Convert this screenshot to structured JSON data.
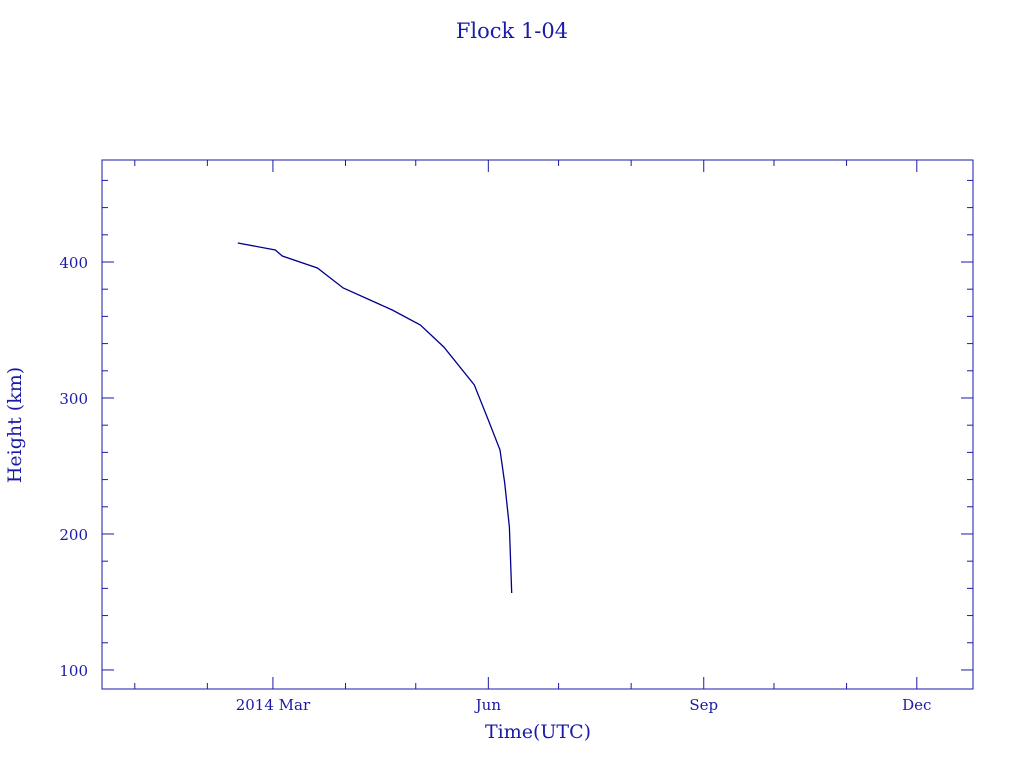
{
  "chart_data": {
    "type": "line",
    "title": "Flock 1-04",
    "xlabel": "Time(UTC)",
    "ylabel": "Height (km)",
    "xlim": [
      "2013-12-18",
      "2014-12-25"
    ],
    "ylim": [
      86,
      475
    ],
    "x_ticks": [
      {
        "date": "2014-03-01",
        "label": "2014 Mar"
      },
      {
        "date": "2014-06-01",
        "label": "Jun"
      },
      {
        "date": "2014-09-01",
        "label": "Sep"
      },
      {
        "date": "2014-12-01",
        "label": "Dec"
      }
    ],
    "x_minor_ticks": [
      "2014-01-01",
      "2014-02-01",
      "2014-04-01",
      "2014-05-01",
      "2014-07-01",
      "2014-08-01",
      "2014-10-01",
      "2014-11-01"
    ],
    "y_ticks": [
      100,
      200,
      300,
      400
    ],
    "y_minor_step": 20,
    "grid": false,
    "color": "#00008b",
    "series": [
      {
        "x": [
          "2014-02-14",
          "2014-03-02",
          "2014-03-05",
          "2014-03-20",
          "2014-03-31",
          "2014-04-21",
          "2014-05-03",
          "2014-05-13",
          "2014-05-26",
          "2014-06-01",
          "2014-06-06",
          "2014-06-08",
          "2014-06-10",
          "2014-06-11"
        ],
        "y": [
          414.0,
          408.8,
          404.4,
          395.6,
          380.9,
          364.7,
          353.7,
          337.5,
          309.6,
          283.8,
          261.8,
          237.5,
          205.0,
          156.6
        ]
      }
    ]
  }
}
